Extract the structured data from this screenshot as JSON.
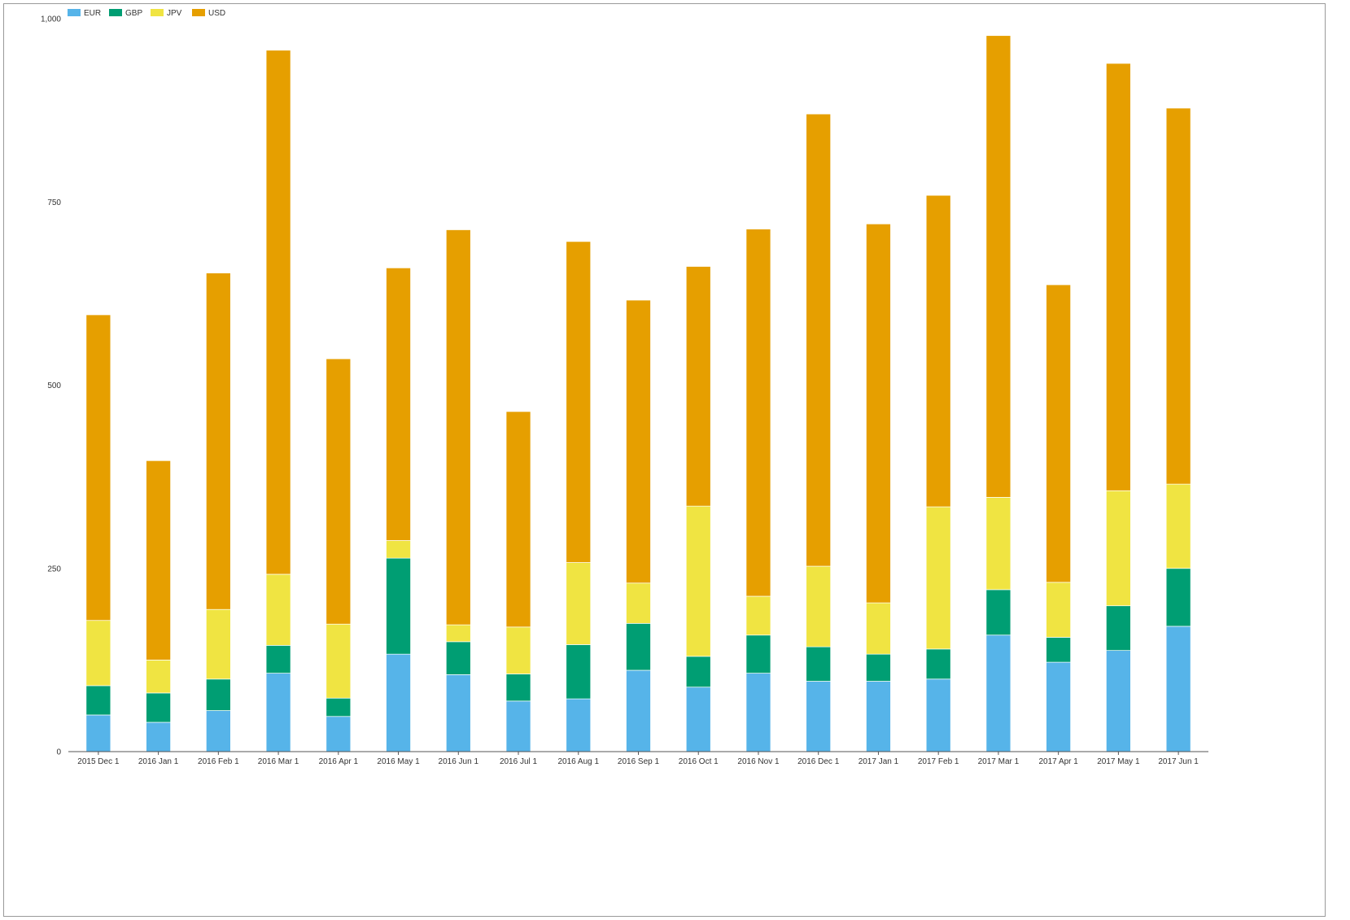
{
  "chart_data": {
    "type": "bar",
    "stacked": true,
    "title": "",
    "xlabel": "",
    "ylabel": "",
    "ylim": [
      0,
      1000
    ],
    "yticks": [
      0,
      250,
      500,
      750,
      1000
    ],
    "ytick_labels": [
      "0",
      "250",
      "500",
      "750",
      "1,000"
    ],
    "legend_position": "top-left",
    "grid": false,
    "categories": [
      "2015 Dec 1",
      "2016 Jan 1",
      "2016 Feb 1",
      "2016 Mar 1",
      "2016 Apr 1",
      "2016 May 1",
      "2016 Jun 1",
      "2016 Jul 1",
      "2016 Aug 1",
      "2016 Sep 1",
      "2016 Oct 1",
      "2016 Nov 1",
      "2016 Dec 1",
      "2017 Jan 1",
      "2017 Feb 1",
      "2017 Mar 1",
      "2017 Apr 1",
      "2017 May 1",
      "2017 Jun 1"
    ],
    "series": [
      {
        "name": "EUR",
        "color": "#56b4e9",
        "values": [
          50,
          40,
          56,
          107,
          48,
          133,
          105,
          69,
          72,
          111,
          88,
          107,
          96,
          96,
          99,
          159,
          122,
          138,
          171
        ]
      },
      {
        "name": "GBP",
        "color": "#009e73",
        "values": [
          40,
          40,
          43,
          38,
          25,
          131,
          45,
          37,
          74,
          64,
          42,
          52,
          47,
          37,
          41,
          62,
          34,
          61,
          79
        ]
      },
      {
        "name": "JPV",
        "color": "#f0e442",
        "values": [
          89,
          45,
          95,
          97,
          101,
          24,
          23,
          64,
          112,
          55,
          205,
          53,
          110,
          70,
          194,
          126,
          75,
          157,
          115
        ]
      },
      {
        "name": "USD",
        "color": "#e69f00",
        "values": [
          417,
          272,
          459,
          715,
          362,
          372,
          539,
          294,
          438,
          386,
          327,
          501,
          617,
          517,
          425,
          630,
          406,
          583,
          513
        ]
      }
    ]
  }
}
